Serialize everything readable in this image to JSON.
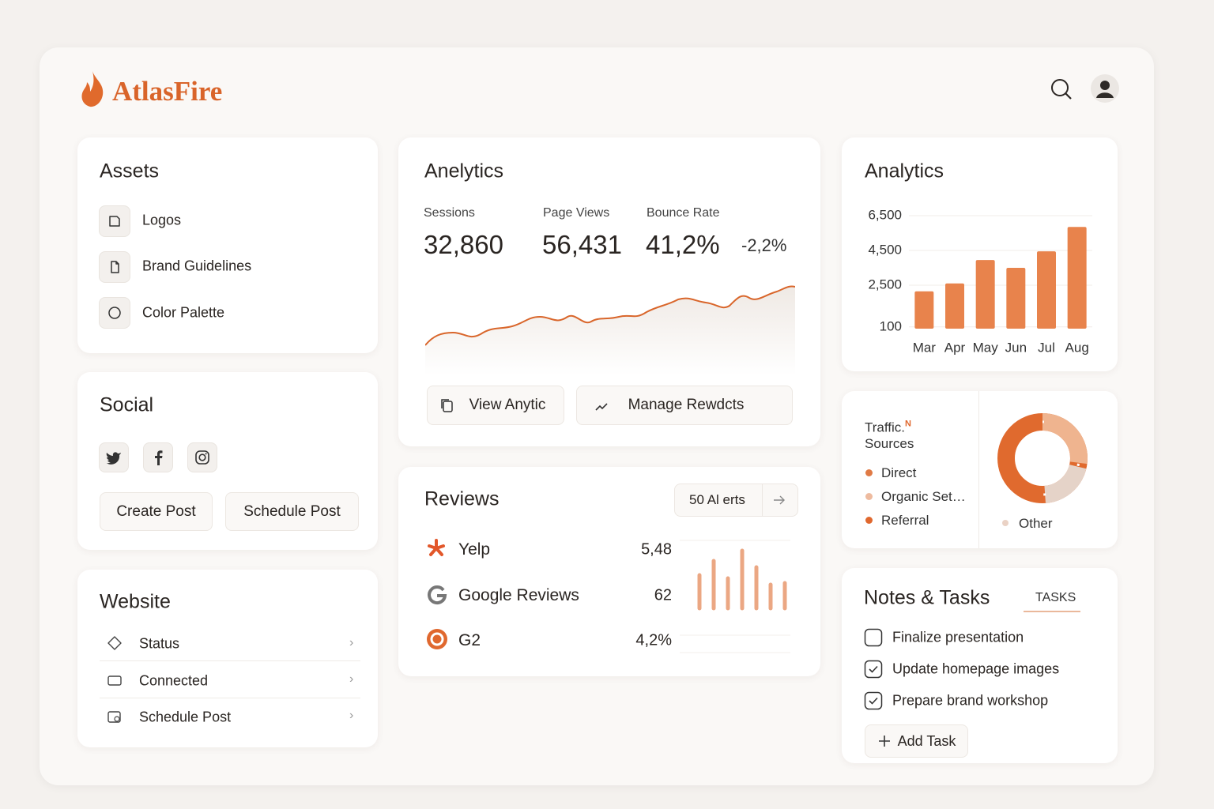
{
  "header": {
    "logo": "AtlasFire"
  },
  "assets": {
    "title": "Assets",
    "items": [
      "Logos",
      "Brand Guidelines",
      "Color Palette"
    ]
  },
  "social": {
    "title": "Social",
    "buttons": [
      "Create Post",
      "Schedule Post"
    ]
  },
  "website": {
    "title": "Website",
    "items": [
      "Status",
      "Connected",
      "Schedule Post"
    ]
  },
  "anelytics": {
    "title": "Anelytics",
    "metrics": [
      {
        "label": "Sessions",
        "value": "32,860"
      },
      {
        "label": "Page Views",
        "value": "56,431"
      },
      {
        "label": "Bounce Rate",
        "value": "41,2%"
      }
    ],
    "change": "-2,2%",
    "buttons": [
      "View Anytic",
      "Manage Rewdcts"
    ]
  },
  "reviews": {
    "title": "Reviews",
    "alerts": "50 Al erts",
    "rows": [
      {
        "name": "Yelp",
        "value": "5,48"
      },
      {
        "name": "Google Reviews",
        "value": "62"
      },
      {
        "name": "G2",
        "value": "4,2%"
      }
    ]
  },
  "chart_data": {
    "type": "bar",
    "title": "Analytics",
    "categories": [
      "Mar",
      "Apr",
      "May",
      "Jun",
      "Jul",
      "Aug"
    ],
    "values": [
      2150,
      2600,
      3950,
      3500,
      4450,
      5850
    ],
    "color": "#e8834c",
    "ylim": [
      0,
      7000
    ],
    "yticks": [
      {
        "value": 100,
        "label": "100"
      },
      {
        "value": 2500,
        "label": "2,500"
      },
      {
        "value": 4500,
        "label": "4,500"
      },
      {
        "value": 6500,
        "label": "6,500"
      }
    ],
    "grid": true
  },
  "traffic": {
    "title": "Traffic.",
    "marker": "N",
    "subtitle": "Sources",
    "legend": [
      {
        "name": "Direct",
        "color": "#e07a45"
      },
      {
        "name": "Organic Set…",
        "color": "#eebb9f"
      },
      {
        "name": "Referral",
        "color": "#e0682e"
      }
    ],
    "other": {
      "name": "Other",
      "color": "#ead2c5"
    }
  },
  "notes": {
    "title": "Notes & Tasks",
    "tab": "TASKS",
    "tasks": [
      {
        "text": "Finalize presentation",
        "done": false
      },
      {
        "text": "Update homepage images",
        "done": true
      },
      {
        "text": "Prepare brand workshop",
        "done": true
      }
    ],
    "add": "Add Task"
  }
}
